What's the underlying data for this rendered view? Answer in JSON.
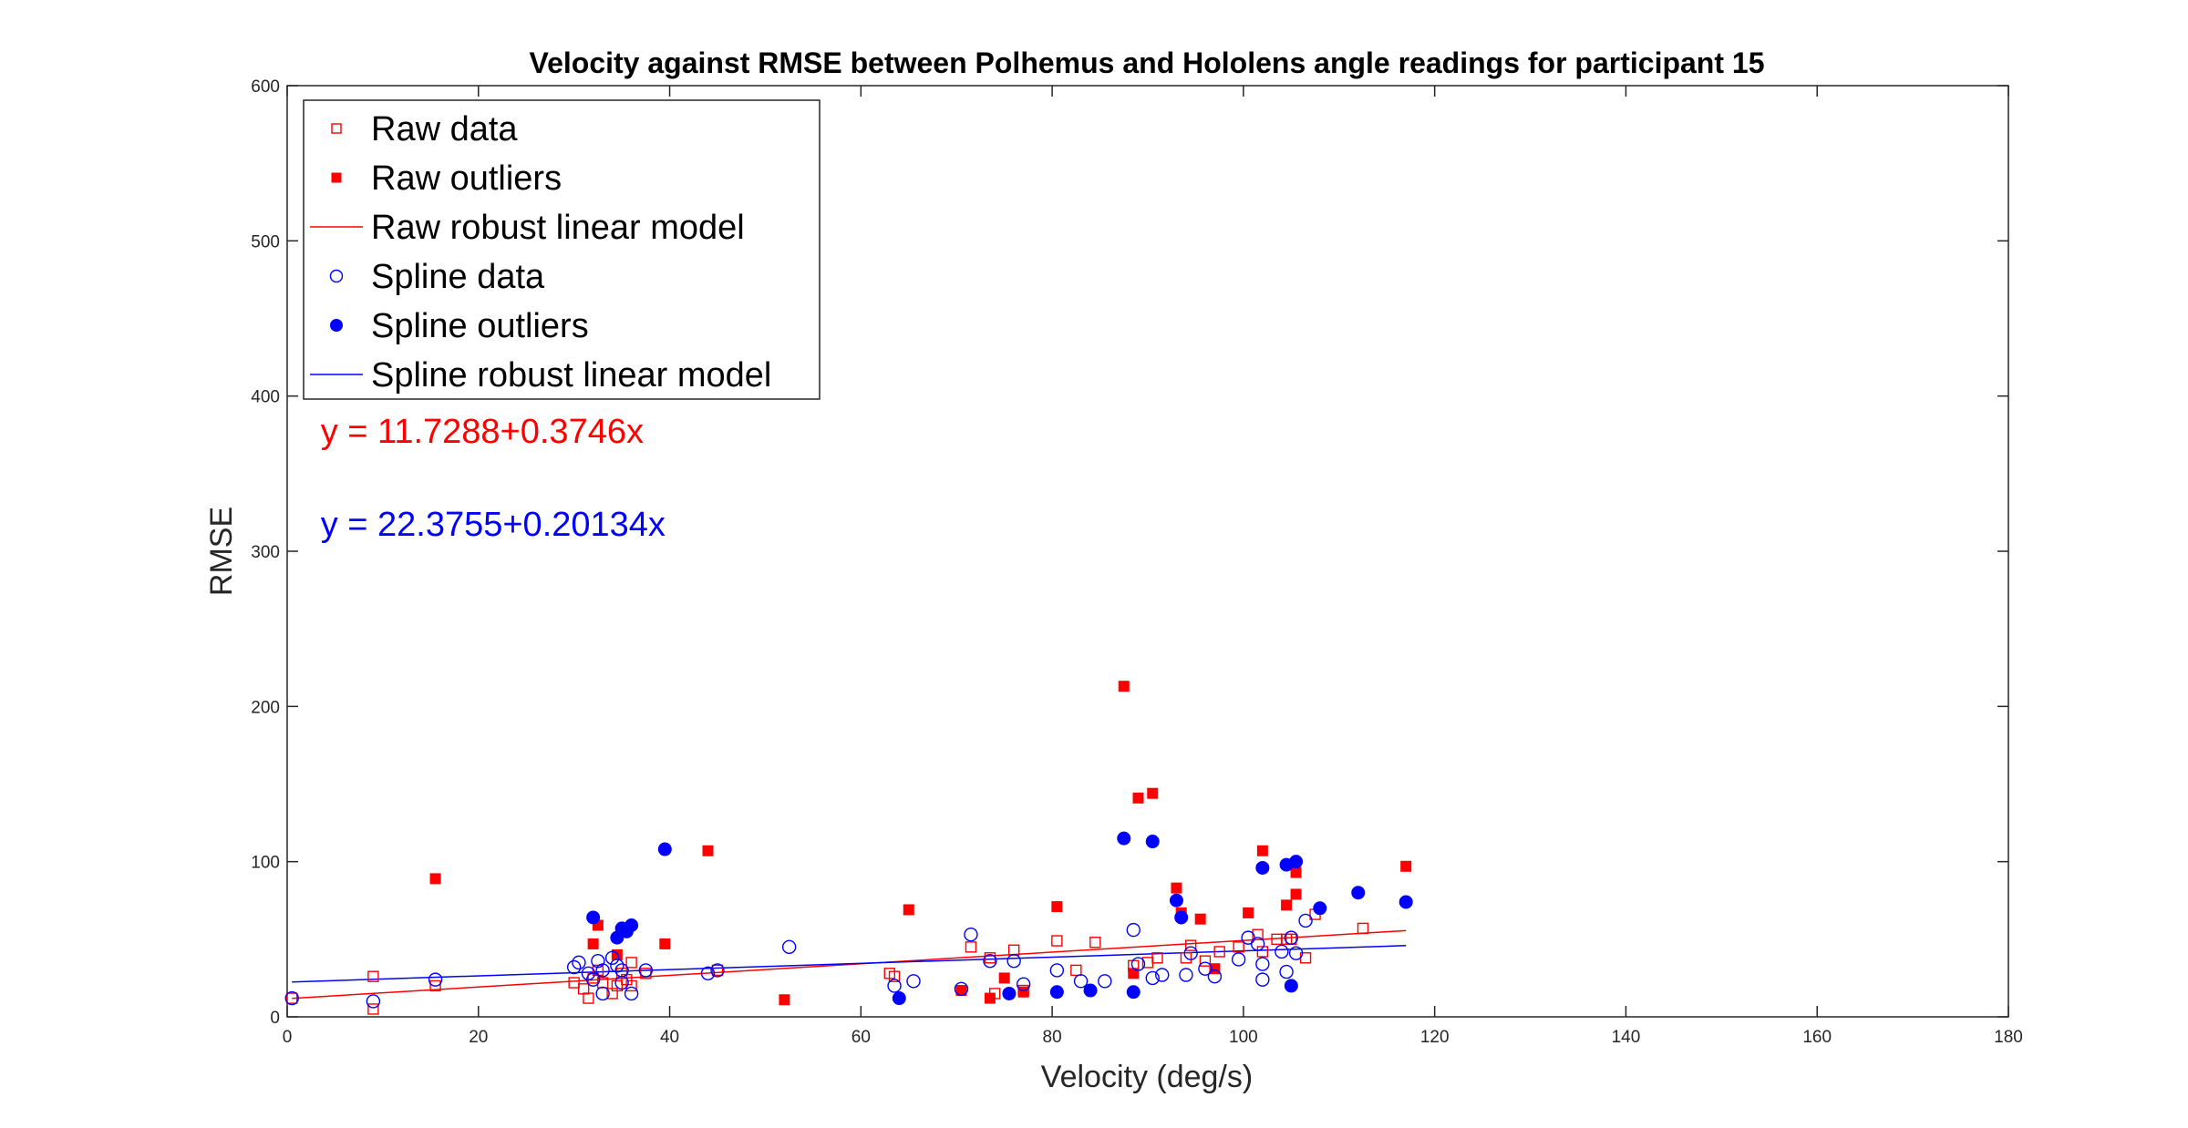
{
  "chart_data": {
    "type": "scatter",
    "title": "Velocity against RMSE between Polhemus and Hololens angle readings for participant 15",
    "xlabel": "Velocity (deg/s)",
    "ylabel": "RMSE",
    "xlim": [
      0,
      180
    ],
    "ylim": [
      0,
      600
    ],
    "xticks": [
      "0",
      "20",
      "40",
      "60",
      "80",
      "100",
      "120",
      "140",
      "160",
      "180"
    ],
    "yticks": [
      "0",
      "100",
      "200",
      "300",
      "400",
      "500",
      "600"
    ],
    "grid": false,
    "legend_position": "top-left",
    "legend": [
      "Raw data",
      "Raw outliers",
      "Raw robust linear model",
      "Spline data",
      "Spline outliers",
      "Spline robust linear model"
    ],
    "annotations": [
      {
        "text": "y = 11.7288+0.3746x",
        "color": "#ff0000",
        "x": 3.5,
        "y": 370
      },
      {
        "text": "y = 22.3755+0.20134x",
        "color": "#0000ff",
        "x": 3.5,
        "y": 310
      }
    ],
    "colors": {
      "raw": "#ff0000",
      "spline": "#0000ff",
      "axis": "#262626"
    },
    "series": [
      {
        "name": "Raw data",
        "marker": "square-open",
        "color": "#ff0000",
        "points": [
          [
            0.5,
            12
          ],
          [
            9,
            26
          ],
          [
            9,
            5
          ],
          [
            15.5,
            20
          ],
          [
            30,
            22
          ],
          [
            31,
            18
          ],
          [
            31.5,
            12
          ],
          [
            32,
            25
          ],
          [
            32.5,
            30
          ],
          [
            33,
            22
          ],
          [
            34,
            15
          ],
          [
            34.5,
            20
          ],
          [
            35,
            28
          ],
          [
            35.5,
            24
          ],
          [
            36,
            20
          ],
          [
            36,
            35
          ],
          [
            37.5,
            28
          ],
          [
            45,
            30
          ],
          [
            63,
            28
          ],
          [
            63.5,
            26
          ],
          [
            71.5,
            45
          ],
          [
            73.5,
            38
          ],
          [
            74,
            15
          ],
          [
            76,
            43
          ],
          [
            77,
            17
          ],
          [
            80.5,
            49
          ],
          [
            82.5,
            30
          ],
          [
            84.5,
            48
          ],
          [
            88.5,
            33
          ],
          [
            90,
            35
          ],
          [
            91,
            38
          ],
          [
            94,
            38
          ],
          [
            94.5,
            46
          ],
          [
            96,
            36
          ],
          [
            97.5,
            42
          ],
          [
            99.5,
            45
          ],
          [
            101.5,
            53
          ],
          [
            102,
            42
          ],
          [
            103.5,
            50
          ],
          [
            104.5,
            50
          ],
          [
            105,
            50
          ],
          [
            106.5,
            38
          ],
          [
            107.5,
            66
          ],
          [
            112.5,
            57
          ]
        ]
      },
      {
        "name": "Raw outliers",
        "marker": "square-filled",
        "color": "#ff0000",
        "points": [
          [
            15.5,
            89
          ],
          [
            32,
            47
          ],
          [
            32.5,
            59
          ],
          [
            34.5,
            40
          ],
          [
            39.5,
            47
          ],
          [
            44,
            107
          ],
          [
            52,
            11
          ],
          [
            65,
            69
          ],
          [
            70.5,
            17
          ],
          [
            73.5,
            12
          ],
          [
            75,
            25
          ],
          [
            77,
            16
          ],
          [
            80.5,
            71
          ],
          [
            87.5,
            213
          ],
          [
            88.5,
            28
          ],
          [
            89,
            141
          ],
          [
            90.5,
            144
          ],
          [
            93,
            83
          ],
          [
            93.5,
            67
          ],
          [
            95.5,
            63
          ],
          [
            97,
            31
          ],
          [
            100.5,
            67
          ],
          [
            102,
            107
          ],
          [
            104.5,
            72
          ],
          [
            105.5,
            79
          ],
          [
            105.5,
            93
          ],
          [
            117,
            97
          ]
        ]
      },
      {
        "name": "Spline data",
        "marker": "circle-open",
        "color": "#0000ff",
        "points": [
          [
            0.5,
            12
          ],
          [
            9,
            10
          ],
          [
            15.5,
            24
          ],
          [
            30,
            32
          ],
          [
            30.5,
            35
          ],
          [
            31.5,
            28
          ],
          [
            32,
            24
          ],
          [
            32.5,
            36
          ],
          [
            33,
            30
          ],
          [
            33,
            15
          ],
          [
            34,
            38
          ],
          [
            34.5,
            33
          ],
          [
            35,
            30
          ],
          [
            35,
            22
          ],
          [
            36,
            15
          ],
          [
            37.5,
            30
          ],
          [
            44,
            28
          ],
          [
            45,
            30
          ],
          [
            52.5,
            45
          ],
          [
            63.5,
            20
          ],
          [
            65.5,
            23
          ],
          [
            70.5,
            18
          ],
          [
            71.5,
            53
          ],
          [
            73.5,
            36
          ],
          [
            76,
            36
          ],
          [
            77,
            21
          ],
          [
            80.5,
            30
          ],
          [
            83,
            23
          ],
          [
            85.5,
            23
          ],
          [
            88.5,
            56
          ],
          [
            89,
            34
          ],
          [
            90.5,
            25
          ],
          [
            91.5,
            27
          ],
          [
            94,
            27
          ],
          [
            94.5,
            41
          ],
          [
            96,
            31
          ],
          [
            97,
            26
          ],
          [
            99.5,
            37
          ],
          [
            100.5,
            51
          ],
          [
            101.5,
            47
          ],
          [
            102,
            34
          ],
          [
            102,
            24
          ],
          [
            104,
            42
          ],
          [
            104.5,
            29
          ],
          [
            105,
            51
          ],
          [
            105.5,
            41
          ],
          [
            106.5,
            62
          ]
        ]
      },
      {
        "name": "Spline outliers",
        "marker": "circle-filled",
        "color": "#0000ff",
        "points": [
          [
            32,
            64
          ],
          [
            34.5,
            51
          ],
          [
            35,
            57
          ],
          [
            35.5,
            55
          ],
          [
            36,
            59
          ],
          [
            39.5,
            108
          ],
          [
            64,
            12
          ],
          [
            75.5,
            15
          ],
          [
            80.5,
            16
          ],
          [
            84,
            17
          ],
          [
            87.5,
            115
          ],
          [
            88.5,
            16
          ],
          [
            90.5,
            113
          ],
          [
            93,
            75
          ],
          [
            93.5,
            64
          ],
          [
            102,
            96
          ],
          [
            104.5,
            98
          ],
          [
            105,
            20
          ],
          [
            105.5,
            100
          ],
          [
            108,
            70
          ],
          [
            112,
            80
          ],
          [
            117,
            74
          ]
        ]
      }
    ],
    "fits": [
      {
        "name": "Raw robust linear model",
        "color": "#ff0000",
        "intercept": 11.7288,
        "slope": 0.3746,
        "x_range": [
          0.5,
          117
        ]
      },
      {
        "name": "Spline robust linear model",
        "color": "#0000ff",
        "intercept": 22.3755,
        "slope": 0.20134,
        "x_range": [
          0.5,
          117
        ]
      }
    ]
  }
}
